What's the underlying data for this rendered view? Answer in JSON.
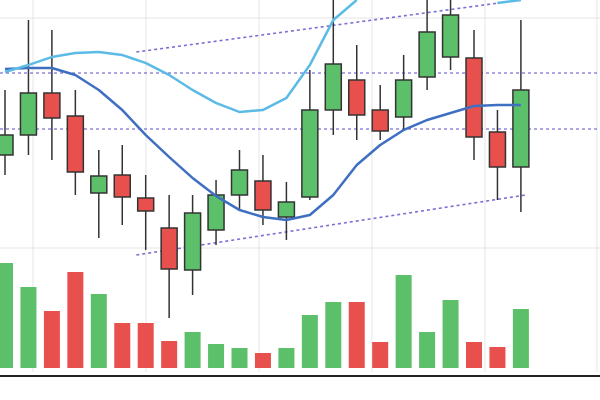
{
  "chart_data": {
    "type": "candlestick",
    "up_color": "#5cbf6a",
    "down_color": "#e8504d",
    "open": [
      245,
      265,
      307,
      284,
      207,
      225,
      202,
      172,
      130,
      170,
      205,
      219,
      183,
      203,
      290,
      320,
      290,
      283,
      323,
      343,
      342,
      268,
      233
    ],
    "high": [
      310,
      380,
      370,
      310,
      250,
      255,
      225,
      205,
      205,
      220,
      250,
      245,
      218,
      330,
      400,
      355,
      315,
      345,
      400,
      400,
      370,
      290,
      380
    ],
    "low": [
      225,
      245,
      240,
      205,
      162,
      175,
      150,
      82,
      105,
      155,
      190,
      175,
      160,
      200,
      265,
      260,
      260,
      270,
      310,
      330,
      240,
      200,
      188
    ],
    "close": [
      265,
      307,
      282,
      228,
      224,
      203,
      189,
      131,
      187,
      205,
      230,
      190,
      198,
      290,
      336,
      285,
      269,
      320,
      368,
      385,
      263,
      233,
      310
    ],
    "volume": [
      105,
      81,
      57,
      96,
      74,
      45,
      45,
      27,
      36,
      24,
      20,
      15,
      20,
      53,
      66,
      66,
      26,
      93,
      36,
      68,
      26,
      21,
      59
    ],
    "ylim": [
      0,
      400
    ],
    "vlim": [
      0,
      130
    ],
    "series": [
      {
        "color": "#3f6fc1",
        "values": [
          331,
          332,
          332,
          325,
          310,
          290,
          265,
          243,
          222,
          204,
          190,
          183,
          180,
          185,
          205,
          235,
          255,
          270,
          280,
          287,
          294,
          295,
          295
        ]
      },
      {
        "color": "#5bbbe6",
        "values": [
          328,
          335,
          343,
          347,
          348,
          345,
          337,
          325,
          310,
          297,
          288,
          290,
          302,
          335,
          380,
          400,
          null,
          null,
          null,
          null,
          null,
          397,
          400
        ]
      }
    ],
    "levels": [
      327,
      271
    ],
    "level_color": "#7b6fd6",
    "trendlines": [
      {
        "x": [
          5.6,
          22
        ],
        "y": [
          348,
          400
        ]
      },
      {
        "x": [
          5.6,
          22.2
        ],
        "y": [
          145,
          205
        ]
      }
    ]
  }
}
